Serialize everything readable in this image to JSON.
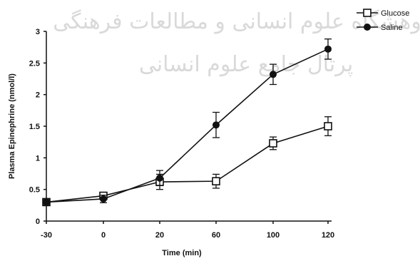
{
  "watermark": {
    "line1": "پژوهشگاه علوم انسانی و مطالعات فرهنگی",
    "line2": "پرتال جامع علوم انسانی"
  },
  "chart_data": {
    "type": "line",
    "title": "",
    "xlabel": "Time (min)",
    "ylabel": "Plasma Epinephrine (nmol/l)",
    "categories": [
      "-30",
      "0",
      "20",
      "60",
      "100",
      "120"
    ],
    "yticks": [
      "0",
      "0.5",
      "1",
      "1.5",
      "2",
      "2.5",
      "3"
    ],
    "ylim": [
      0,
      3
    ],
    "grid": false,
    "legend": "top-right",
    "series": [
      {
        "name": "Glucose",
        "marker": "open-square",
        "color": "#111111",
        "values": [
          0.3,
          0.4,
          0.62,
          0.63,
          1.23,
          1.5
        ],
        "errors": [
          0.04,
          0.05,
          0.12,
          0.11,
          0.1,
          0.15
        ]
      },
      {
        "name": "Saline",
        "marker": "filled-circle",
        "color": "#111111",
        "values": [
          0.3,
          0.35,
          0.68,
          1.52,
          2.32,
          2.72
        ],
        "errors": [
          0.04,
          0.06,
          0.12,
          0.2,
          0.16,
          0.16
        ]
      }
    ]
  }
}
